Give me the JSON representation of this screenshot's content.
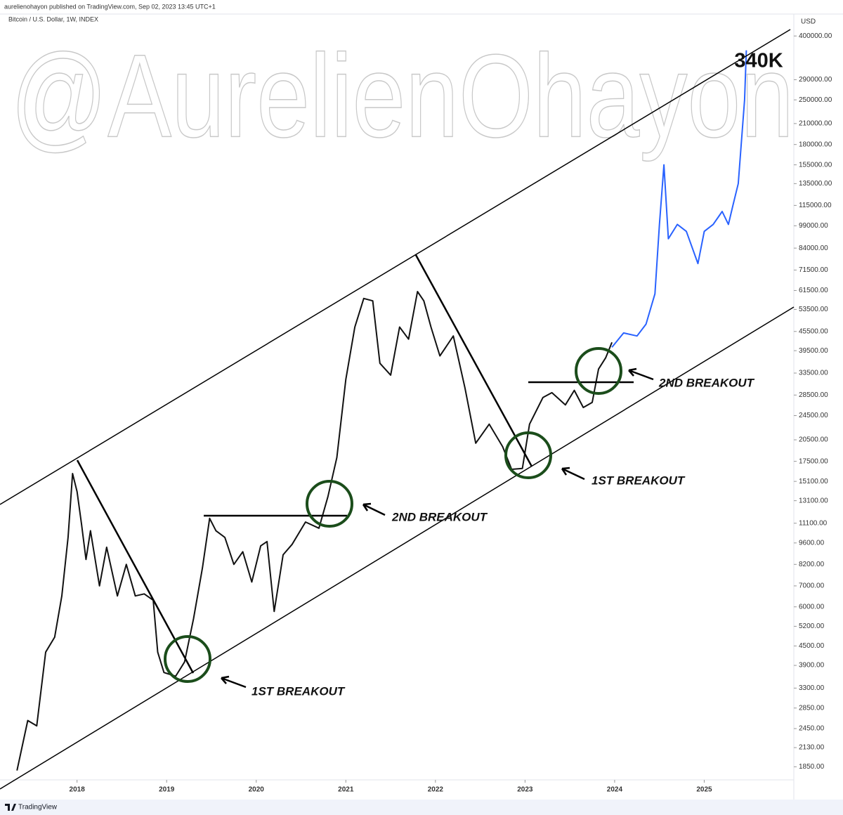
{
  "header": {
    "publisher": "aurelienohayon published on TradingView.com, Sep 02, 2023 13:45 UTC+1",
    "symbol": "Bitcoin / U.S. Dollar, 1W, INDEX",
    "currency": "USD",
    "footer": "TradingView"
  },
  "chart_data": {
    "type": "line",
    "log_scale": true,
    "watermark": "@AurelienOhayon",
    "annotations": [
      "340K",
      "1ST BREAKOUT",
      "2ND BREAKOUT",
      "1ST BREAKOUT",
      "2ND BREAKOUT"
    ],
    "xlim": [
      2017.14,
      2026.0
    ],
    "xticks": [
      2018,
      2019,
      2020,
      2021,
      2022,
      2023,
      2024,
      2025
    ],
    "ylim": [
      1680,
      470000
    ],
    "yticks": [
      {
        "value": 400000,
        "label": "400000.00"
      },
      {
        "value": 290000,
        "label": "290000.00"
      },
      {
        "value": 250000,
        "label": "250000.00"
      },
      {
        "value": 210000,
        "label": "210000.00"
      },
      {
        "value": 180000,
        "label": "180000.00"
      },
      {
        "value": 155000,
        "label": "155000.00"
      },
      {
        "value": 135000,
        "label": "135000.00"
      },
      {
        "value": 115000,
        "label": "115000.00"
      },
      {
        "value": 99000,
        "label": "99000.00"
      },
      {
        "value": 84000,
        "label": "84000.00"
      },
      {
        "value": 71500,
        "label": "71500.00"
      },
      {
        "value": 61500,
        "label": "61500.00"
      },
      {
        "value": 53500,
        "label": "53500.00"
      },
      {
        "value": 45500,
        "label": "45500.00"
      },
      {
        "value": 39500,
        "label": "39500.00"
      },
      {
        "value": 33500,
        "label": "33500.00"
      },
      {
        "value": 28500,
        "label": "28500.00"
      },
      {
        "value": 24500,
        "label": "24500.00"
      },
      {
        "value": 20500,
        "label": "20500.00"
      },
      {
        "value": 17500,
        "label": "17500.00"
      },
      {
        "value": 15100,
        "label": "15100.00"
      },
      {
        "value": 13100,
        "label": "13100.00"
      },
      {
        "value": 11100,
        "label": "11100.00"
      },
      {
        "value": 9600,
        "label": "9600.00"
      },
      {
        "value": 8200,
        "label": "8200.00"
      },
      {
        "value": 7000,
        "label": "7000.00"
      },
      {
        "value": 6000,
        "label": "6000.00"
      },
      {
        "value": 5200,
        "label": "5200.00"
      },
      {
        "value": 4500,
        "label": "4500.00"
      },
      {
        "value": 3900,
        "label": "3900.00"
      },
      {
        "value": 3300,
        "label": "3300.00"
      },
      {
        "value": 2850,
        "label": "2850.00"
      },
      {
        "value": 2450,
        "label": "2450.00"
      },
      {
        "value": 2130,
        "label": "2130.00"
      },
      {
        "value": 1850,
        "label": "1850.00"
      }
    ],
    "series": [
      {
        "color": "#111111",
        "x": [
          2017.33,
          2017.45,
          2017.55,
          2017.65,
          2017.75,
          2017.83,
          2017.9,
          2017.95,
          2018.0,
          2018.05,
          2018.1,
          2018.15,
          2018.25,
          2018.33,
          2018.45,
          2018.55,
          2018.65,
          2018.75,
          2018.85,
          2018.9,
          2018.97,
          2019.1,
          2019.2,
          2019.3,
          2019.4,
          2019.48,
          2019.55,
          2019.65,
          2019.75,
          2019.85,
          2019.95,
          2020.05,
          2020.12,
          2020.2,
          2020.3,
          2020.4,
          2020.55,
          2020.7,
          2020.8,
          2020.9,
          2021.0,
          2021.1,
          2021.2,
          2021.3,
          2021.38,
          2021.5,
          2021.6,
          2021.7,
          2021.8,
          2021.87,
          2021.95,
          2022.05,
          2022.2,
          2022.33,
          2022.45,
          2022.6,
          2022.75,
          2022.85,
          2022.97,
          2023.05,
          2023.2,
          2023.3,
          2023.45,
          2023.55,
          2023.65,
          2023.75,
          2023.82,
          2023.9,
          2023.97
        ],
        "values": [
          1800,
          2600,
          2500,
          4300,
          4800,
          6500,
          10000,
          16000,
          14000,
          11000,
          8500,
          10500,
          7000,
          9300,
          6500,
          8200,
          6500,
          6600,
          6300,
          4300,
          3700,
          3600,
          4000,
          5500,
          8000,
          11500,
          10500,
          10000,
          8200,
          9000,
          7200,
          9400,
          9700,
          5800,
          8800,
          9500,
          11200,
          10700,
          13500,
          18000,
          32000,
          47000,
          58000,
          57000,
          36000,
          33000,
          47000,
          43000,
          61000,
          57000,
          47000,
          38000,
          44000,
          30000,
          20000,
          23000,
          19500,
          16500,
          16600,
          23000,
          28000,
          29000,
          26500,
          29500,
          26000,
          27000,
          34500,
          37500,
          42000
        ]
      },
      {
        "color": "#2962ff",
        "x": [
          2023.97,
          2024.1,
          2024.25,
          2024.35,
          2024.45,
          2024.5,
          2024.55,
          2024.6,
          2024.7,
          2024.8,
          2024.93,
          2025.0,
          2025.1,
          2025.2,
          2025.27,
          2025.32,
          2025.38,
          2025.45,
          2025.47
        ],
        "values": [
          40500,
          45000,
          44000,
          48000,
          60000,
          100000,
          155000,
          90000,
          100000,
          95000,
          75000,
          95000,
          100000,
          110000,
          100000,
          115000,
          135000,
          250000,
          360000
        ]
      }
    ]
  }
}
